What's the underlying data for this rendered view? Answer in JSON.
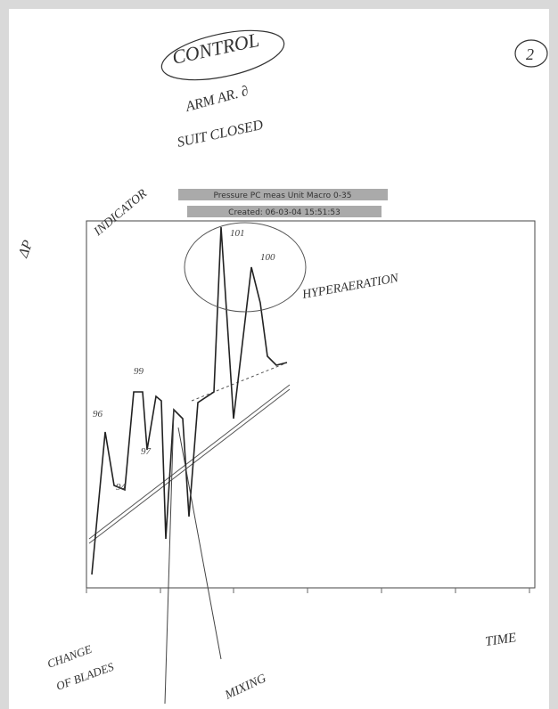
{
  "header": {
    "title": "CONTROL",
    "notes": [
      "ARM AR. ∂",
      "SUIT CLOSED"
    ],
    "page_number": "2"
  },
  "chart": {
    "title": "Pressure PC meas Unit Macro 0-35",
    "subtitle": "Created: 06-03-04 15:51:53",
    "annotations": [
      "ΔP",
      "INDICATOR",
      "HYPERAERATION",
      "96",
      "99",
      "97",
      "94",
      "101",
      "100"
    ]
  },
  "footer": {
    "time": "TIME",
    "blades": [
      "CHANGE",
      "OF BLADES"
    ],
    "mixing": "MIXING"
  }
}
